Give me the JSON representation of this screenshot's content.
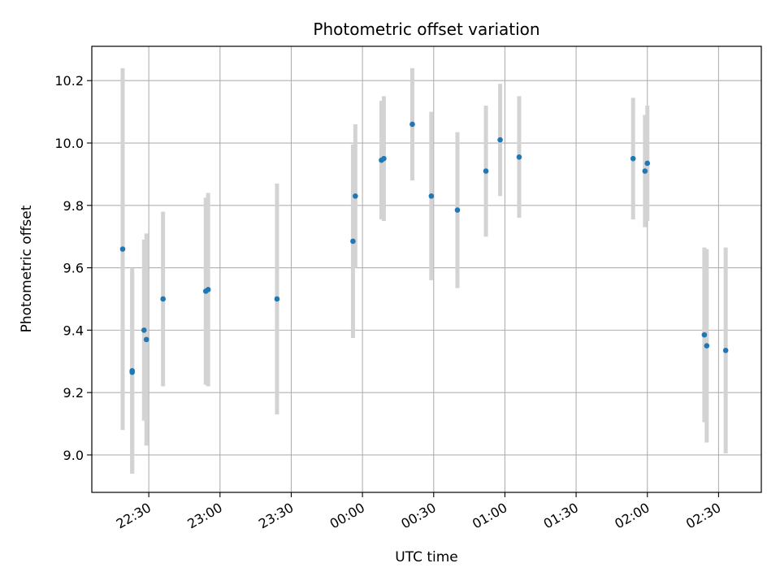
{
  "chart_data": {
    "type": "scatter",
    "title": "Photometric offset variation",
    "xlabel": "UTC time",
    "ylabel": "Photometric offset",
    "x_unit": "UTC clock time (date rollover at 00:00)",
    "xlim": [
      "22:06",
      "02:48"
    ],
    "ylim": [
      8.88,
      10.31
    ],
    "x_ticks": [
      "22:30",
      "23:00",
      "23:30",
      "00:00",
      "00:30",
      "01:00",
      "01:30",
      "02:00",
      "02:30"
    ],
    "y_ticks": [
      9.0,
      9.2,
      9.4,
      9.6,
      9.8,
      10.0,
      10.2
    ],
    "y_tick_labels": [
      "9.0",
      "9.2",
      "9.4",
      "9.6",
      "9.8",
      "10.0",
      "10.2"
    ],
    "grid": true,
    "colors": {
      "point": "#1f77b4",
      "errorbar": "#d3d3d3",
      "grid": "#b0b0b0"
    },
    "series": [
      {
        "points": [
          {
            "x": "22:19",
            "y": 9.66,
            "yerr": 0.58
          },
          {
            "x": "22:23",
            "y": 9.27,
            "yerr": 0.33
          },
          {
            "x": "22:23",
            "y": 9.265,
            "yerr": 0.32
          },
          {
            "x": "22:28",
            "y": 9.4,
            "yerr": 0.29
          },
          {
            "x": "22:29",
            "y": 9.37,
            "yerr": 0.34
          },
          {
            "x": "22:36",
            "y": 9.5,
            "yerr": 0.28
          },
          {
            "x": "22:54",
            "y": 9.525,
            "yerr": 0.3
          },
          {
            "x": "22:55",
            "y": 9.53,
            "yerr": 0.31
          },
          {
            "x": "23:24",
            "y": 9.5,
            "yerr": 0.37
          },
          {
            "x": "23:56",
            "y": 9.685,
            "yerr": 0.31
          },
          {
            "x": "23:57",
            "y": 9.83,
            "yerr": 0.23
          },
          {
            "x": "00:08",
            "y": 9.945,
            "yerr": 0.19
          },
          {
            "x": "00:09",
            "y": 9.95,
            "yerr": 0.2
          },
          {
            "x": "00:21",
            "y": 10.06,
            "yerr": 0.18
          },
          {
            "x": "00:29",
            "y": 9.83,
            "yerr": 0.27
          },
          {
            "x": "00:40",
            "y": 9.785,
            "yerr": 0.25
          },
          {
            "x": "00:52",
            "y": 9.91,
            "yerr": 0.21
          },
          {
            "x": "00:58",
            "y": 10.01,
            "yerr": 0.18
          },
          {
            "x": "01:06",
            "y": 9.955,
            "yerr": 0.195
          },
          {
            "x": "01:54",
            "y": 9.95,
            "yerr": 0.195
          },
          {
            "x": "01:59",
            "y": 9.91,
            "yerr": 0.18
          },
          {
            "x": "02:00",
            "y": 9.935,
            "yerr": 0.185
          },
          {
            "x": "02:24",
            "y": 9.385,
            "yerr": 0.28
          },
          {
            "x": "02:25",
            "y": 9.35,
            "yerr": 0.31
          },
          {
            "x": "02:33",
            "y": 9.335,
            "yerr": 0.33
          }
        ]
      }
    ]
  }
}
